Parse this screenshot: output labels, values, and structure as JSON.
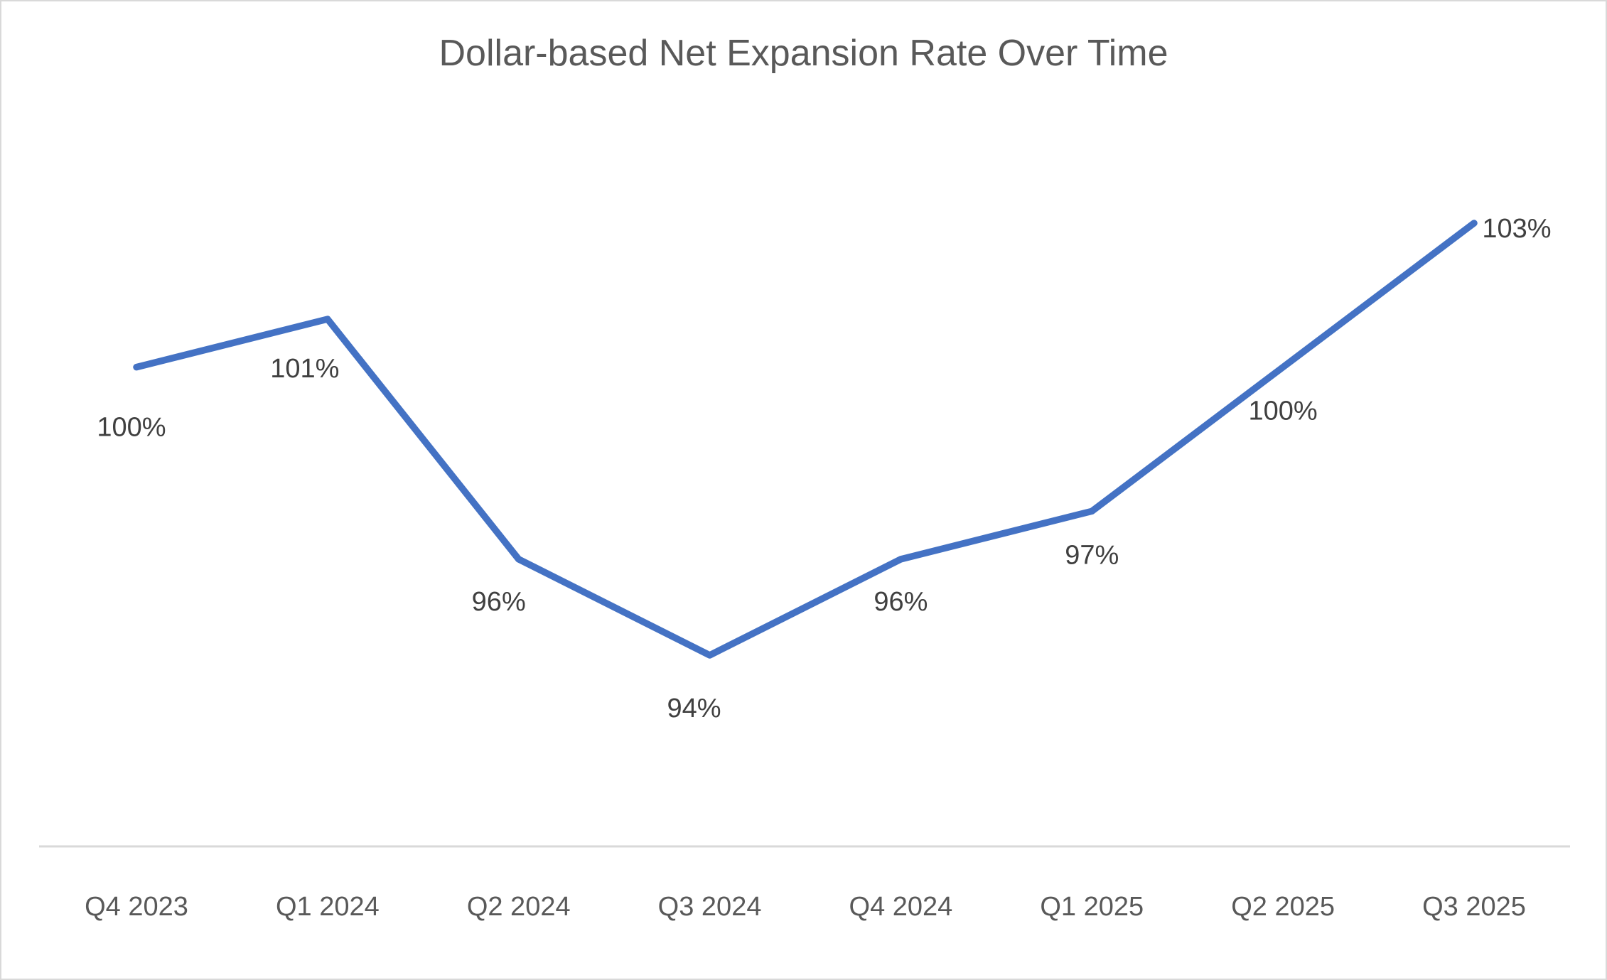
{
  "chart_data": {
    "type": "line",
    "title": "Dollar-based Net Expansion Rate Over Time",
    "categories": [
      "Q4 2023",
      "Q1 2024",
      "Q2 2024",
      "Q3 2024",
      "Q4 2024",
      "Q1 2025",
      "Q2 2025",
      "Q3 2025"
    ],
    "series": [
      {
        "name": "Dollar-based Net Expansion Rate",
        "values": [
          100,
          101,
          96,
          94,
          96,
          97,
          100,
          103
        ]
      }
    ],
    "data_labels": [
      "100%",
      "101%",
      "96%",
      "94%",
      "96%",
      "97%",
      "100%",
      "103%"
    ],
    "xlabel": "",
    "ylabel": "",
    "ylim": [
      90,
      105
    ],
    "y_axis_visible": false,
    "gridlines": false,
    "legend": "none",
    "line_color": "#4472C4",
    "data_label_color": "#404040",
    "axis_label_color": "#595959",
    "title_color": "#595959",
    "axis_line_color": "#D9D9D9"
  }
}
